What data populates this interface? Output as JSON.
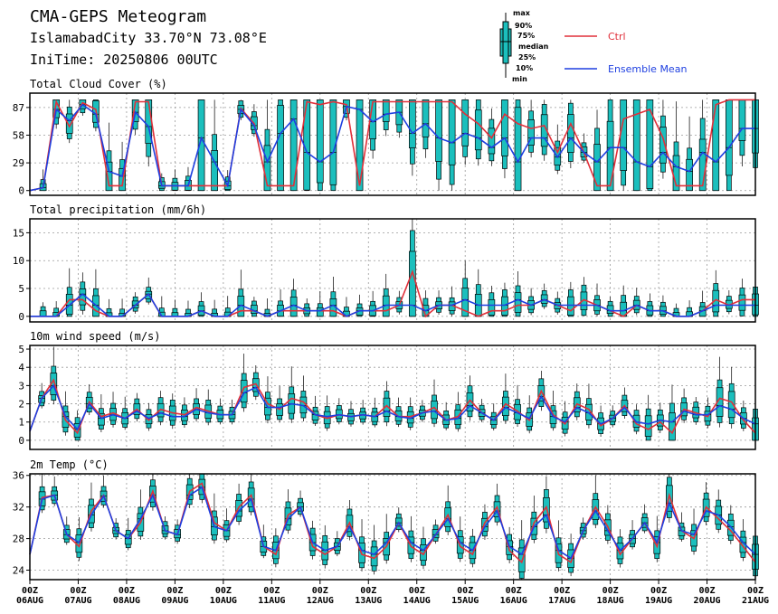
{
  "header": {
    "title": "CMA-GEPS Meteogram",
    "location": "IslamabadCity 33.70°N 73.08°E",
    "init_time": "IniTime: 20250806 00UTC"
  },
  "legend": {
    "ctrl_label": "Ctrl",
    "mean_label": "Ensemble Mean",
    "ctrl_color": "#e0303a",
    "mean_color": "#1e3fe0",
    "box_color": "#1bbfbd",
    "box_labels": [
      "max",
      "90%",
      "75%",
      "median",
      "25%",
      "10%",
      "min"
    ]
  },
  "x_axis": {
    "hour_label": "00Z",
    "dates": [
      "06AUG",
      "07AUG",
      "08AUG",
      "09AUG",
      "10AUG",
      "11AUG",
      "12AUG",
      "13AUG",
      "14AUG",
      "15AUG",
      "16AUG",
      "17AUG",
      "18AUG",
      "19AUG",
      "20AUG",
      "21AUG"
    ]
  },
  "chart_data": [
    {
      "type": "line",
      "title": "Total Cloud Cover (%)",
      "ylim": [
        -5,
        102
      ],
      "yticks": [
        "0",
        "29",
        "58",
        "87"
      ],
      "ytick_values": [
        0,
        29,
        58,
        87
      ],
      "grid": true,
      "series": [
        {
          "name": "Ctrl",
          "values": [
            0,
            3,
            93,
            67,
            92,
            85,
            5,
            5,
            93,
            93,
            5,
            5,
            5,
            5,
            5,
            5,
            86,
            70,
            5,
            5,
            5,
            93,
            90,
            93,
            90,
            5,
            93,
            93,
            93,
            93,
            93,
            93,
            93,
            80,
            70,
            55,
            80,
            70,
            65,
            68,
            40,
            70,
            40,
            5,
            5,
            75,
            80,
            85,
            55,
            5,
            5,
            5,
            90,
            95,
            95,
            95
          ]
        },
        {
          "name": "Ensemble Mean",
          "values": [
            0,
            3,
            85,
            73,
            90,
            80,
            20,
            15,
            82,
            67,
            5,
            5,
            5,
            55,
            30,
            5,
            85,
            68,
            30,
            60,
            75,
            40,
            30,
            40,
            88,
            85,
            72,
            80,
            82,
            60,
            70,
            55,
            50,
            60,
            55,
            45,
            55,
            30,
            55,
            55,
            35,
            55,
            40,
            30,
            45,
            45,
            30,
            25,
            40,
            25,
            20,
            40,
            30,
            45,
            65,
            65
          ]
        }
      ]
    },
    {
      "type": "line",
      "title": "Total precipitation (mm/6h)",
      "ylim": [
        -1,
        17.5
      ],
      "yticks": [
        "0",
        "5",
        "10",
        "15"
      ],
      "ytick_values": [
        0,
        5,
        10,
        15
      ],
      "grid": true,
      "series": [
        {
          "name": "Ctrl",
          "values": [
            0,
            0,
            0,
            3,
            3,
            1,
            0,
            0,
            2,
            4,
            0,
            0,
            0,
            1,
            0,
            0,
            1,
            1,
            0,
            1,
            1,
            1,
            1,
            1,
            0,
            1,
            1,
            1,
            2,
            8,
            0,
            2,
            2,
            1,
            0,
            1,
            1,
            2,
            2,
            3,
            2,
            1,
            3,
            2,
            1,
            0,
            2,
            1,
            1,
            0,
            0,
            1,
            3,
            2,
            3,
            3
          ]
        },
        {
          "name": "Ensemble Mean",
          "values": [
            0,
            0,
            0,
            2,
            4,
            2,
            0,
            0,
            2,
            4,
            0,
            0,
            0,
            1,
            0,
            0,
            2,
            1,
            0,
            1,
            2,
            1,
            1,
            2,
            0,
            1,
            1,
            2,
            2,
            2,
            1,
            2,
            2,
            3,
            2,
            2,
            2,
            3,
            2,
            3,
            2,
            2,
            2,
            2,
            1,
            1,
            2,
            1,
            1,
            0,
            0,
            1,
            2,
            2,
            2,
            2
          ]
        }
      ]
    },
    {
      "type": "line",
      "title": "10m wind speed (m/s)",
      "ylim": [
        -0.5,
        5.2
      ],
      "yticks": [
        "0",
        "1",
        "2",
        "3",
        "4",
        "5"
      ],
      "ytick_values": [
        0,
        1,
        2,
        3,
        4,
        5
      ],
      "grid": true,
      "series": [
        {
          "name": "Ctrl",
          "values": [
            0.5,
            2.3,
            3.3,
            1.1,
            0.4,
            2.1,
            1.3,
            1.5,
            1.2,
            1.7,
            1.1,
            1.7,
            1.5,
            1.4,
            1.8,
            1.6,
            1.4,
            1.4,
            2.9,
            3.1,
            2.0,
            1.7,
            2.3,
            2.1,
            1.4,
            1.2,
            1.4,
            1.3,
            1.4,
            1.3,
            1.9,
            1.3,
            1.3,
            1.5,
            1.8,
            1.1,
            1.3,
            2.2,
            1.5,
            1.1,
            2.0,
            1.6,
            1.1,
            2.7,
            1.4,
            0.9,
            2.0,
            1.7,
            0.8,
            1.2,
            1.9,
            0.9,
            0.6,
            1.0,
            0.4,
            1.7,
            1.5,
            1.3,
            2.3,
            2.1,
            1.1,
            0.4
          ]
        },
        {
          "name": "Ensemble Mean",
          "values": [
            0.5,
            2.3,
            3.0,
            1.3,
            0.6,
            2.0,
            1.2,
            1.4,
            1.2,
            1.6,
            1.2,
            1.5,
            1.3,
            1.3,
            1.7,
            1.5,
            1.4,
            1.4,
            2.6,
            2.9,
            1.8,
            1.8,
            2.0,
            1.9,
            1.4,
            1.3,
            1.4,
            1.3,
            1.4,
            1.3,
            1.6,
            1.3,
            1.2,
            1.5,
            1.6,
            1.1,
            1.2,
            1.9,
            1.5,
            1.1,
            1.8,
            1.5,
            1.2,
            2.4,
            1.3,
            1.0,
            1.8,
            1.5,
            0.9,
            1.2,
            1.8,
            1.0,
            0.9,
            1.1,
            1.0,
            1.6,
            1.4,
            1.4,
            1.9,
            1.7,
            1.2,
            0.9
          ]
        }
      ]
    },
    {
      "type": "line",
      "title": "2m Temp (°C)",
      "ylim": [
        22.8,
        36.2
      ],
      "yticks": [
        "24",
        "28",
        "32",
        "36"
      ],
      "ytick_values": [
        24,
        28,
        32,
        36
      ],
      "grid": true,
      "series": [
        {
          "name": "Ctrl",
          "values": [
            26,
            33.2,
            33.5,
            28.5,
            27,
            31.5,
            33.5,
            29,
            28,
            30,
            34,
            29,
            28.5,
            34,
            35,
            30,
            29,
            32,
            33.5,
            27,
            26,
            31,
            32,
            27,
            26,
            27,
            30,
            26,
            25.5,
            27,
            30,
            27,
            26,
            28.5,
            31,
            27,
            26,
            30,
            32,
            26.5,
            25,
            30,
            32,
            26,
            25,
            29,
            32,
            29.5,
            26,
            28,
            30,
            27,
            33.5,
            29,
            28,
            32,
            30.5,
            29,
            27,
            25
          ]
        },
        {
          "name": "Ensemble Mean",
          "values": [
            26,
            33,
            33.5,
            28.5,
            27.5,
            31,
            33.4,
            29,
            28,
            30.5,
            33.5,
            29,
            28.5,
            33.5,
            34.5,
            29.5,
            29,
            31.5,
            33,
            27,
            26.5,
            30.5,
            32,
            27.5,
            26.5,
            27,
            29.5,
            26.5,
            26,
            27.5,
            30,
            27.5,
            26.5,
            28.5,
            30.5,
            27.5,
            26.5,
            29.5,
            31.5,
            27,
            26,
            29.5,
            31,
            26.5,
            25.5,
            29,
            31.5,
            29,
            26.5,
            28,
            30,
            27.5,
            32.5,
            29,
            28.5,
            31.5,
            31,
            29.5,
            27.5,
            26
          ]
        }
      ]
    }
  ]
}
